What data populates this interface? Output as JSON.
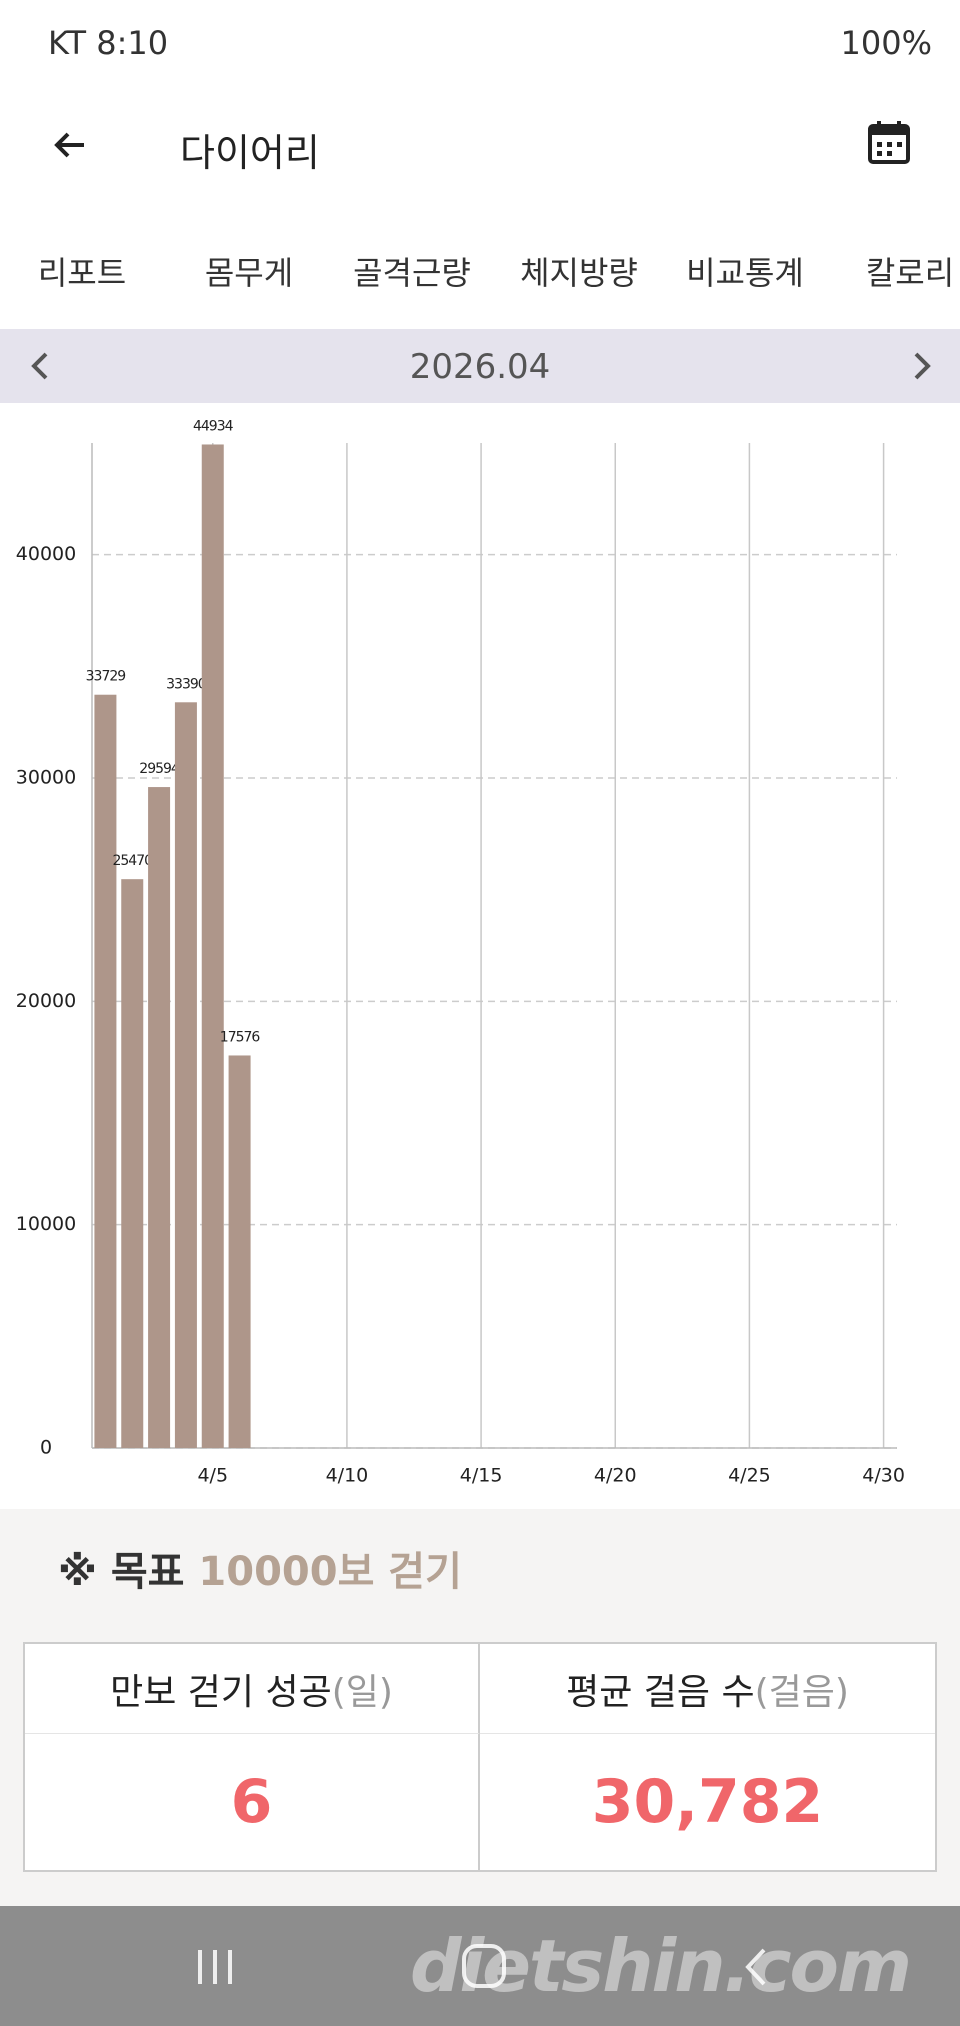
{
  "status_bar": {
    "carrier_time": "KT 8:10",
    "battery": "100%"
  },
  "header": {
    "title": "다이어리"
  },
  "tabs": [
    "리포트",
    "몸무게",
    "골격근량",
    "체지방량",
    "비교통계",
    "칼로리"
  ],
  "month": "2026.04",
  "chart_data": {
    "type": "bar",
    "x": [
      1,
      2,
      3,
      4,
      5,
      6
    ],
    "series": [
      {
        "color": "#ae968a",
        "values": [
          33729,
          25470,
          29594,
          33390,
          44934,
          17576
        ]
      }
    ],
    "xlim": [
      0.5,
      30.5
    ],
    "xticks": [
      {
        "value": 5,
        "label": "4/5"
      },
      {
        "value": 10,
        "label": "4/10"
      },
      {
        "value": 15,
        "label": "4/15"
      },
      {
        "value": 20,
        "label": "4/20"
      },
      {
        "value": 25,
        "label": "4/25"
      },
      {
        "value": 30,
        "label": "4/30"
      }
    ],
    "ylim": [
      0,
      45000
    ],
    "yticks": [
      0,
      10000,
      20000,
      30000,
      40000
    ],
    "grid": true
  },
  "goal": {
    "label": "※ 목표",
    "target": "10000보 걷기"
  },
  "stats": {
    "headers": [
      {
        "label": "만보 걷기 성공",
        "unit": "(일)"
      },
      {
        "label": "평균 걸음 수",
        "unit": "(걸음)"
      }
    ],
    "values": [
      "6",
      "30,782"
    ]
  },
  "watermark": "dietshin.com"
}
